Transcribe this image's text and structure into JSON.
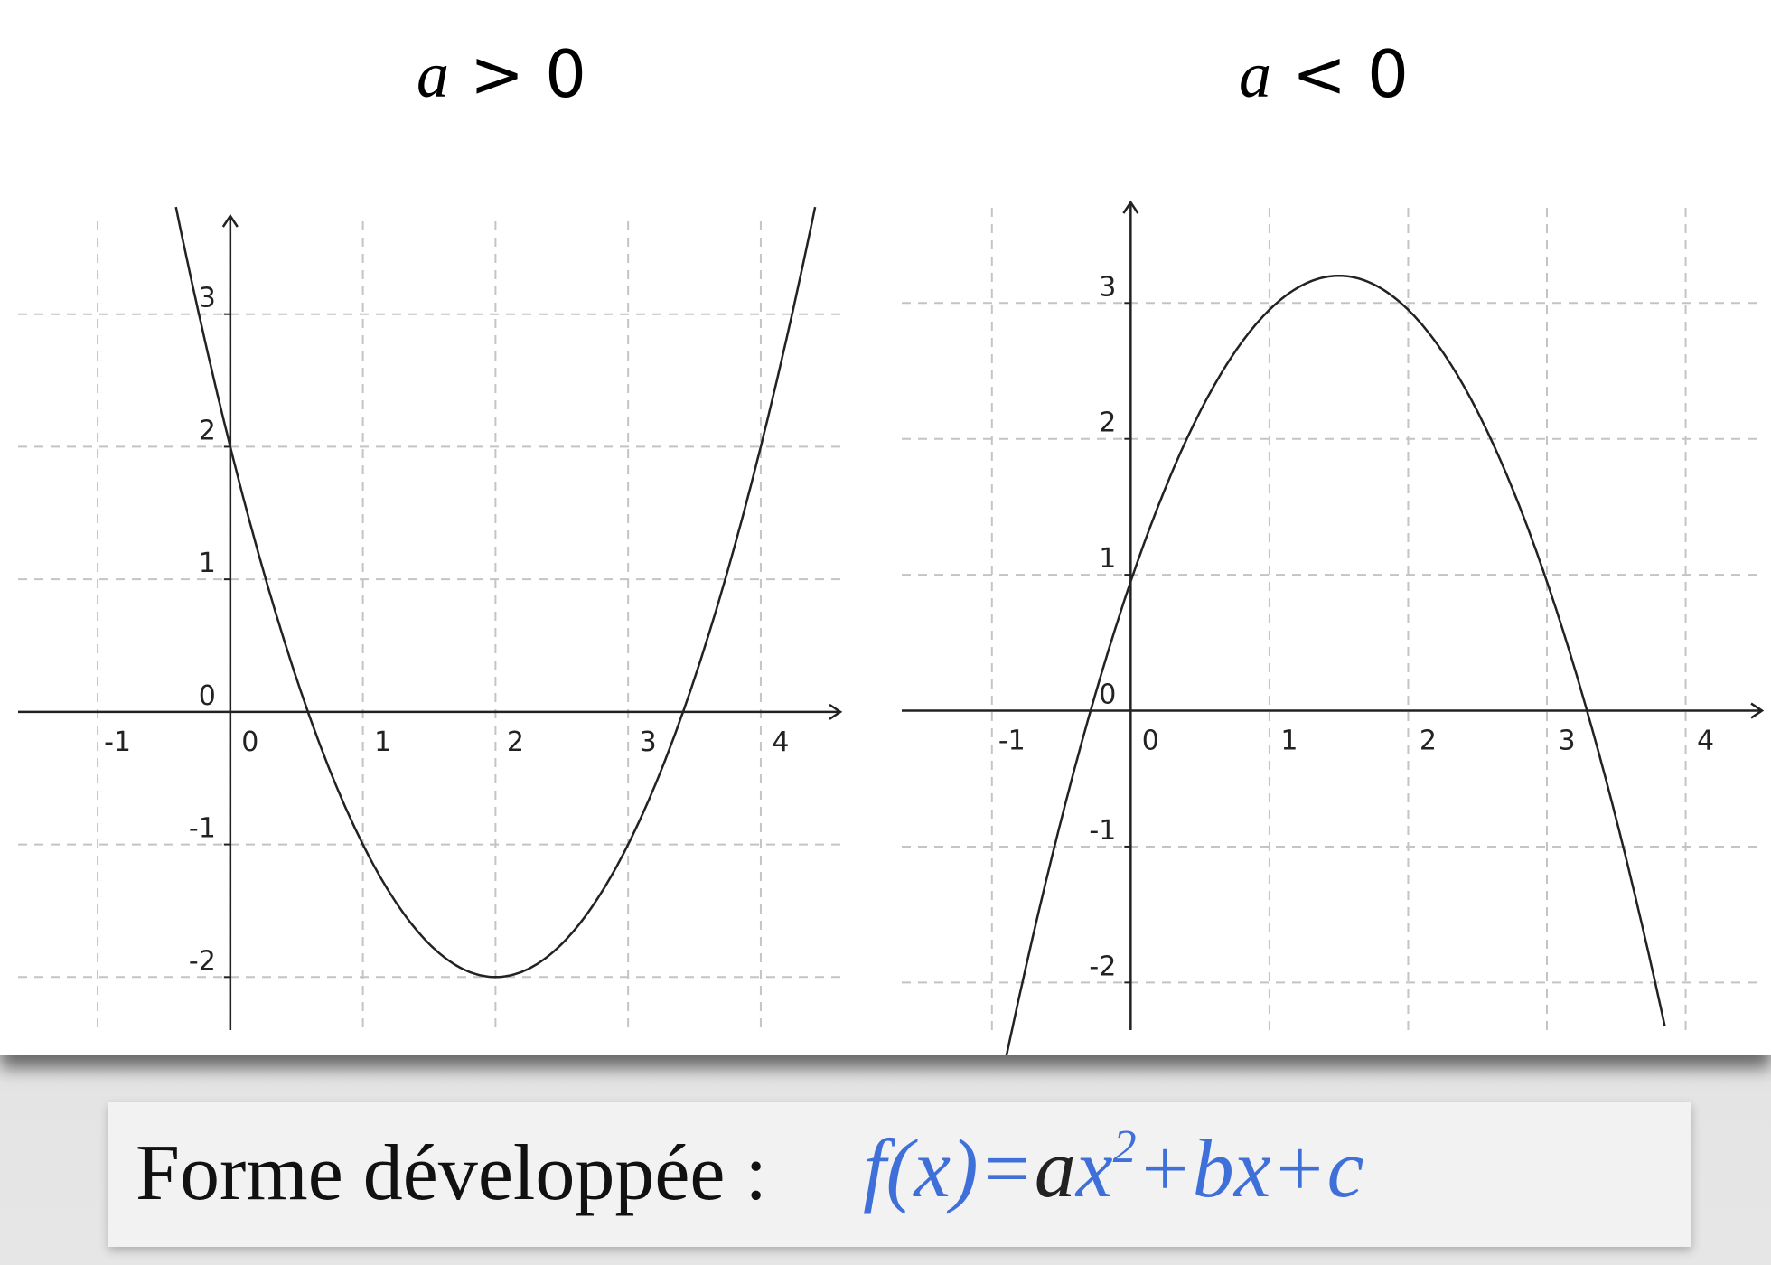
{
  "titles": {
    "left": {
      "var": "a",
      "rest": " > 0"
    },
    "right": {
      "var": "a",
      "rest": " < 0"
    }
  },
  "formula": {
    "label": "Forme développée :",
    "parts": {
      "f": "f(x)",
      "eq": "=",
      "a": "a",
      "x2": "x",
      "exp": "2",
      "rest": "+bx+c"
    }
  },
  "chart_data": [
    {
      "type": "line",
      "title": "a > 0",
      "function": "x^2 - 4x + 2",
      "series": [
        {
          "x": [
            -0.4,
            -0.2,
            0,
            0.5,
            1,
            1.5,
            2,
            2.5,
            3,
            3.5,
            4,
            4.4
          ],
          "y": [
            3.76,
            2.84,
            2,
            0.25,
            -1,
            -1.75,
            -2,
            -1.75,
            -1,
            0.25,
            2,
            3.76
          ]
        }
      ],
      "xlim": [
        -1.6,
        4.6
      ],
      "ylim": [
        -2.4,
        3.7
      ],
      "xticks": [
        -1,
        0,
        1,
        2,
        3,
        4
      ],
      "yticks": [
        -2,
        -1,
        0,
        1,
        2,
        3
      ],
      "xtick_labels": [
        "-1",
        "0",
        "1",
        "2",
        "3",
        "4"
      ],
      "ytick_labels": [
        "-2",
        "-1",
        "0",
        "1",
        "2",
        "3"
      ],
      "grid": true
    },
    {
      "type": "line",
      "title": "a < 0",
      "function": "-(x-1.5)^2 + 3.2",
      "series": [
        {
          "x": [
            -0.9,
            -0.5,
            0,
            0.5,
            1,
            1.5,
            2,
            2.5,
            3,
            3.5,
            3.85
          ],
          "y": [
            -2.56,
            -0.8,
            0.95,
            2.2,
            2.95,
            3.2,
            2.95,
            2.2,
            0.95,
            -0.8,
            -2.32
          ]
        }
      ],
      "xlim": [
        -1.65,
        4.55
      ],
      "ylim": [
        -2.35,
        3.7
      ],
      "xticks": [
        -1,
        0,
        1,
        2,
        3,
        4
      ],
      "yticks": [
        -2,
        -1,
        0,
        1,
        2,
        3
      ],
      "xtick_labels": [
        "-1",
        "0",
        "1",
        "2",
        "3",
        "4"
      ],
      "ytick_labels": [
        "-2",
        "-1",
        "0",
        "1",
        "2",
        "3"
      ],
      "grid": true
    }
  ]
}
